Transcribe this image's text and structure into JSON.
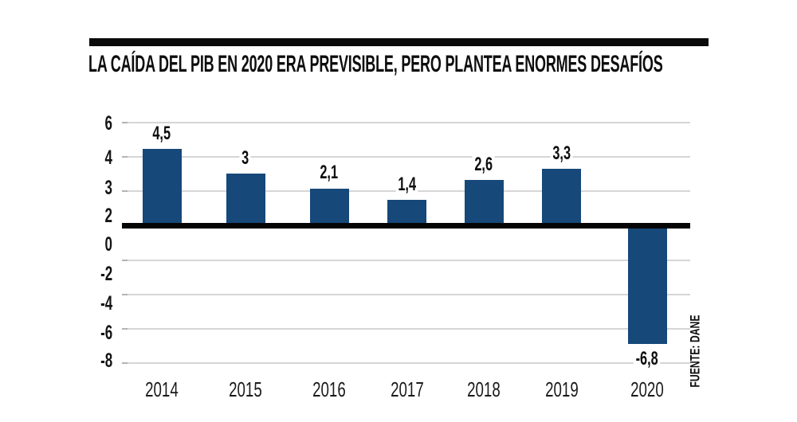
{
  "header": {
    "title": "LA CAÍDA DEL PIB EN 2020 ERA PREVISIBLE, PERO PLANTEA ENORMES DESAFÍOS"
  },
  "source_label": "FUENTE: DANE",
  "chart_data": {
    "type": "bar",
    "title": "LA CAÍDA DEL PIB EN 2020 ERA PREVISIBLE, PERO PLANTEA ENORMES DESAFÍOS",
    "categories": [
      "2014",
      "2015",
      "2016",
      "2017",
      "2018",
      "2019",
      "2020"
    ],
    "values": [
      4.5,
      3,
      2.1,
      1.4,
      2.6,
      3.3,
      -6.8
    ],
    "value_labels": [
      "4,5",
      "3",
      "2,1",
      "1,4",
      "2,6",
      "3,3",
      "-6,8"
    ],
    "y_tick_labels": [
      "6",
      "4",
      "3",
      "2",
      "0",
      "-2",
      "-4",
      "-6",
      "-8"
    ],
    "ylim": [
      -8,
      6
    ],
    "xlabel": "",
    "ylabel": "",
    "grid": true,
    "legend": "none",
    "source": "FUENTE: DANE",
    "colors": {
      "bar": "#164879",
      "gridline": "#d6d6d6",
      "baseline": "#050505",
      "text": "#0d0d0d"
    }
  }
}
